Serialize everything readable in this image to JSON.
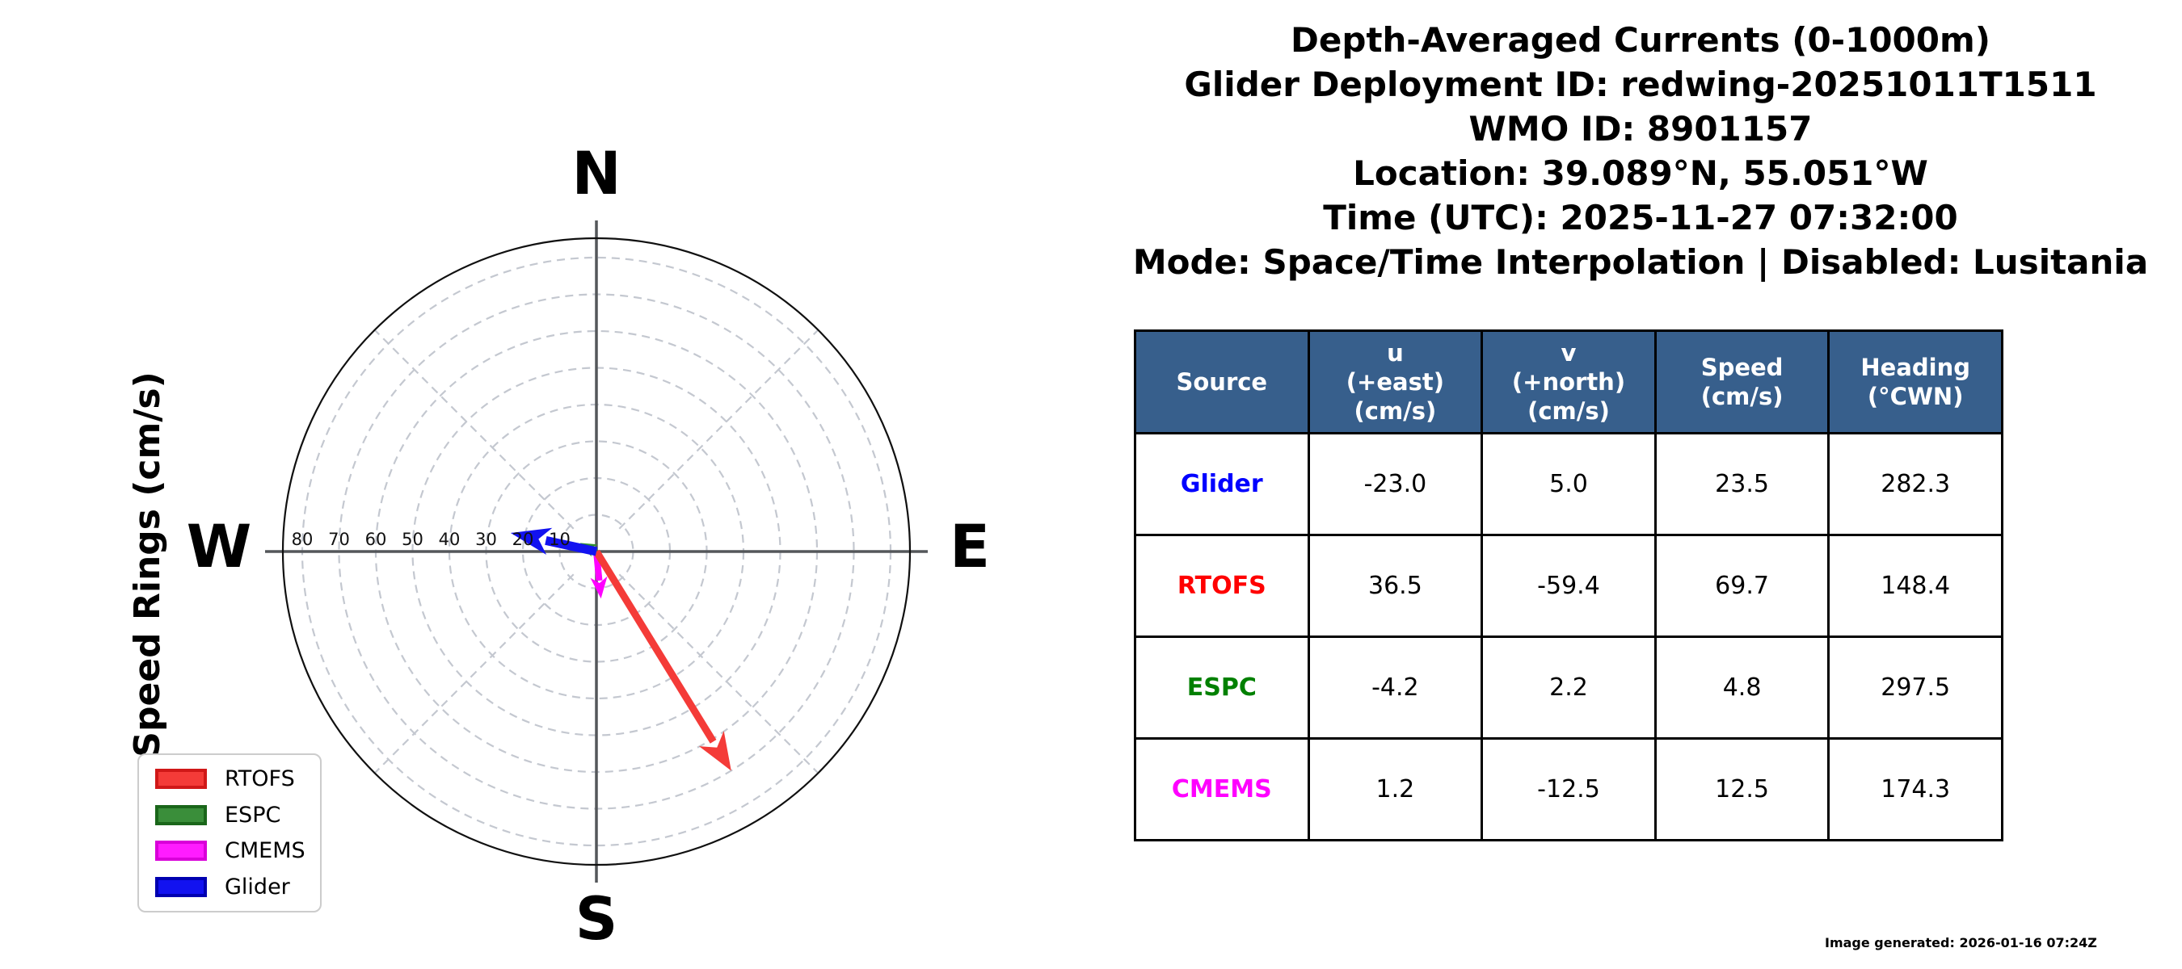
{
  "title_lines": [
    "Depth-Averaged Currents (0-1000m)",
    "Glider Deployment ID: redwing-20251011T1511",
    "WMO ID: 8901157",
    "Location: 39.089°N, 55.051°W",
    "Time (UTC): 2025-11-27 07:32:00",
    "Mode: Space/Time Interpolation | Disabled: Lusitania"
  ],
  "compass": {
    "ylabel": "Speed Rings (cm/s)",
    "north": "N",
    "east": "E",
    "south": "S",
    "west": "W"
  },
  "chart_data": {
    "type": "polar_vector",
    "title": "Depth-Averaged Currents (0-1000m)",
    "radial_label": "Speed Rings (cm/s)",
    "ring_ticks_cm_s": [
      10,
      20,
      30,
      40,
      50,
      60,
      70,
      80
    ],
    "max_radius_cm_s": 85,
    "grid": "dashed rings every 10 cm/s, dashed 45-degree spokes, solid N-S and E-W axes",
    "compass_labels": [
      "N",
      "E",
      "S",
      "W"
    ],
    "legend_position": "lower-left",
    "series": [
      {
        "name": "RTOFS",
        "color": "#f43b38",
        "u_cm_s": 36.5,
        "v_cm_s": -59.4,
        "speed_cm_s": 69.7,
        "heading_deg_cwn": 148.4
      },
      {
        "name": "ESPC",
        "color": "#2f8f2f",
        "u_cm_s": -4.2,
        "v_cm_s": 2.2,
        "speed_cm_s": 4.8,
        "heading_deg_cwn": 297.5
      },
      {
        "name": "CMEMS",
        "color": "#ff00ff",
        "u_cm_s": 1.2,
        "v_cm_s": -12.5,
        "speed_cm_s": 12.5,
        "heading_deg_cwn": 174.3
      },
      {
        "name": "Glider",
        "color": "#1212f0",
        "u_cm_s": -23.0,
        "v_cm_s": 5.0,
        "speed_cm_s": 23.5,
        "heading_deg_cwn": 282.3
      }
    ]
  },
  "legend": {
    "items": [
      {
        "label": "RTOFS",
        "fill": "#f43b38",
        "edge": "#d01818"
      },
      {
        "label": "ESPC",
        "fill": "#3a8e3a",
        "edge": "#1a661a"
      },
      {
        "label": "CMEMS",
        "fill": "#ff1cff",
        "edge": "#d900d9"
      },
      {
        "label": "Glider",
        "fill": "#1212f0",
        "edge": "#0000b0"
      }
    ]
  },
  "table": {
    "headers": [
      {
        "lines": [
          "Source"
        ]
      },
      {
        "lines": [
          "u",
          "(+east)",
          "(cm/s)"
        ]
      },
      {
        "lines": [
          "v",
          "(+north)",
          "(cm/s)"
        ]
      },
      {
        "lines": [
          "Speed",
          "(cm/s)"
        ]
      },
      {
        "lines": [
          "Heading",
          "(°CWN)"
        ]
      }
    ],
    "header_bg": "#375f8c",
    "rows": [
      {
        "source": "Glider",
        "color": "#0000ff",
        "values": [
          "-23.0",
          "5.0",
          "23.5",
          "282.3"
        ]
      },
      {
        "source": "RTOFS",
        "color": "#ff0000",
        "values": [
          "36.5",
          "-59.4",
          "69.7",
          "148.4"
        ]
      },
      {
        "source": "ESPC",
        "color": "#008000",
        "values": [
          "-4.2",
          "2.2",
          "4.8",
          "297.5"
        ]
      },
      {
        "source": "CMEMS",
        "color": "#ff00ff",
        "values": [
          "1.2",
          "-12.5",
          "12.5",
          "174.3"
        ]
      }
    ]
  },
  "footer": "Image generated: 2026-01-16 07:24Z"
}
